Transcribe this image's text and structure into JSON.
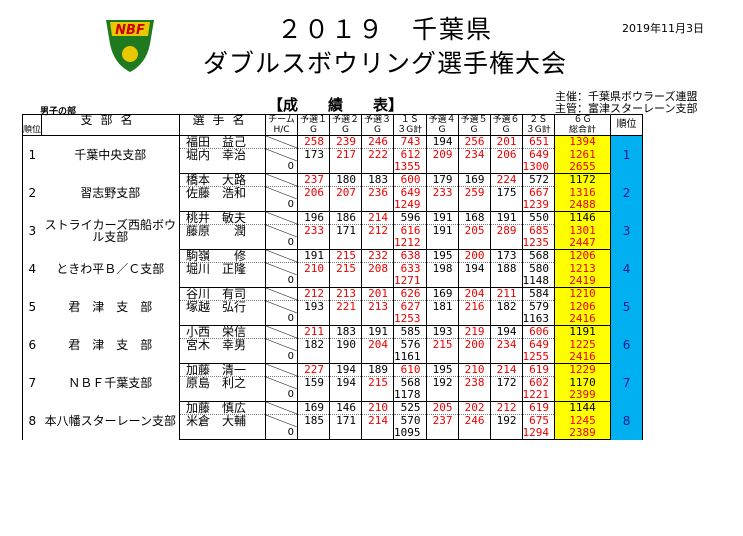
{
  "header": {
    "year": "２０１９",
    "pref": "千葉県",
    "event": "ダブルスボウリング選手権大会",
    "date": "2019年11月3日",
    "division": "男子の部",
    "results_label": "【成　　績　　表】",
    "host": "主催：千葉県ボウラーズ連盟",
    "organizer": "主管：富津スターレーン支部",
    "logo_text": "NBF"
  },
  "columns": {
    "rank": "順位",
    "branch": "支部名",
    "player": "選手名",
    "hc_top": "チーム",
    "hc_bottom": "H/C",
    "p1": "予選１",
    "p2": "予選２",
    "p3": "予選３",
    "s1": "１Ｓ",
    "p4": "予選４",
    "p5": "予選５",
    "p6": "予選６",
    "s2": "２Ｓ",
    "tot_top": "６Ｇ",
    "tot_bottom": "総合計",
    "pos": "順位",
    "g": "G",
    "gs": "３G計"
  },
  "teams": [
    {
      "rank": "1",
      "branch": "千葉中央支部",
      "pos": "1",
      "p": [
        {
          "name": "福田　益己",
          "g": [
            "258",
            "239",
            "246",
            "743",
            "194",
            "256",
            "201",
            "651"
          ],
          "tot": "1394"
        },
        {
          "name": "堀内　幸治",
          "g": [
            "173",
            "217",
            "222",
            "612",
            "209",
            "234",
            "206",
            "649"
          ],
          "tot": "1261"
        }
      ],
      "hc": "0",
      "s1": "1355",
      "s2": "1300",
      "total": "2655"
    },
    {
      "rank": "2",
      "branch": "習志野支部",
      "pos": "2",
      "p": [
        {
          "name": "橋本　大路",
          "g": [
            "237",
            "180",
            "183",
            "600",
            "179",
            "169",
            "224",
            "572"
          ],
          "tot": "1172"
        },
        {
          "name": "佐藤　浩和",
          "g": [
            "206",
            "207",
            "236",
            "649",
            "233",
            "259",
            "175",
            "667"
          ],
          "tot": "1316"
        }
      ],
      "hc": "0",
      "s1": "1249",
      "s2": "1239",
      "total": "2488"
    },
    {
      "rank": "3",
      "branch": "ストライカーズ西船ボウル支部",
      "pos": "3",
      "p": [
        {
          "name": "桃井　敏夫",
          "g": [
            "196",
            "186",
            "214",
            "596",
            "191",
            "168",
            "191",
            "550"
          ],
          "tot": "1146"
        },
        {
          "name": "藤原　　潤",
          "g": [
            "233",
            "171",
            "212",
            "616",
            "191",
            "205",
            "289",
            "685"
          ],
          "tot": "1301"
        }
      ],
      "hc": "0",
      "s1": "1212",
      "s2": "1235",
      "total": "2447"
    },
    {
      "rank": "4",
      "branch": "ときわ平Ｂ／Ｃ支部",
      "pos": "4",
      "p": [
        {
          "name": "駒嶺　　修",
          "g": [
            "191",
            "215",
            "232",
            "638",
            "195",
            "200",
            "173",
            "568"
          ],
          "tot": "1206"
        },
        {
          "name": "堀川　正隆",
          "g": [
            "210",
            "215",
            "208",
            "633",
            "198",
            "194",
            "188",
            "580"
          ],
          "tot": "1213"
        }
      ],
      "hc": "0",
      "s1": "1271",
      "s2": "1148",
      "total": "2419"
    },
    {
      "rank": "5",
      "branch": "君　津　支　部",
      "pos": "5",
      "p": [
        {
          "name": "谷川　有司",
          "g": [
            "212",
            "213",
            "201",
            "626",
            "169",
            "204",
            "211",
            "584"
          ],
          "tot": "1210"
        },
        {
          "name": "塚越　弘行",
          "g": [
            "193",
            "221",
            "213",
            "627",
            "181",
            "216",
            "182",
            "579"
          ],
          "tot": "1206"
        }
      ],
      "hc": "0",
      "s1": "1253",
      "s2": "1163",
      "total": "2416"
    },
    {
      "rank": "6",
      "branch": "君　津　支　部",
      "pos": "6",
      "p": [
        {
          "name": "小西　栄信",
          "g": [
            "211",
            "183",
            "191",
            "585",
            "193",
            "219",
            "194",
            "606"
          ],
          "tot": "1191"
        },
        {
          "name": "宮木　幸男",
          "g": [
            "182",
            "190",
            "204",
            "576",
            "215",
            "200",
            "234",
            "649"
          ],
          "tot": "1225"
        }
      ],
      "hc": "0",
      "s1": "1161",
      "s2": "1255",
      "total": "2416"
    },
    {
      "rank": "7",
      "branch": "ＮＢＦ千葉支部",
      "pos": "7",
      "p": [
        {
          "name": "加藤　清一",
          "g": [
            "227",
            "194",
            "189",
            "610",
            "195",
            "210",
            "214",
            "619"
          ],
          "tot": "1229"
        },
        {
          "name": "原島　利之",
          "g": [
            "159",
            "194",
            "215",
            "568",
            "192",
            "238",
            "172",
            "602"
          ],
          "tot": "1170"
        }
      ],
      "hc": "0",
      "s1": "1178",
      "s2": "1221",
      "total": "2399"
    },
    {
      "rank": "8",
      "branch": "本八幡スターレーン支部",
      "pos": "8",
      "p": [
        {
          "name": "加藤　慎広",
          "g": [
            "169",
            "146",
            "210",
            "525",
            "205",
            "202",
            "212",
            "619"
          ],
          "tot": "1144"
        },
        {
          "name": "米倉　大輔",
          "g": [
            "185",
            "171",
            "214",
            "570",
            "237",
            "246",
            "192",
            "675"
          ],
          "tot": "1245"
        }
      ],
      "hc": "0",
      "s1": "1095",
      "s2": "1294",
      "total": "2389"
    }
  ],
  "colors": {
    "red": "#ee0000",
    "yellow": "#ffff00",
    "blue": "#00b0f0"
  }
}
